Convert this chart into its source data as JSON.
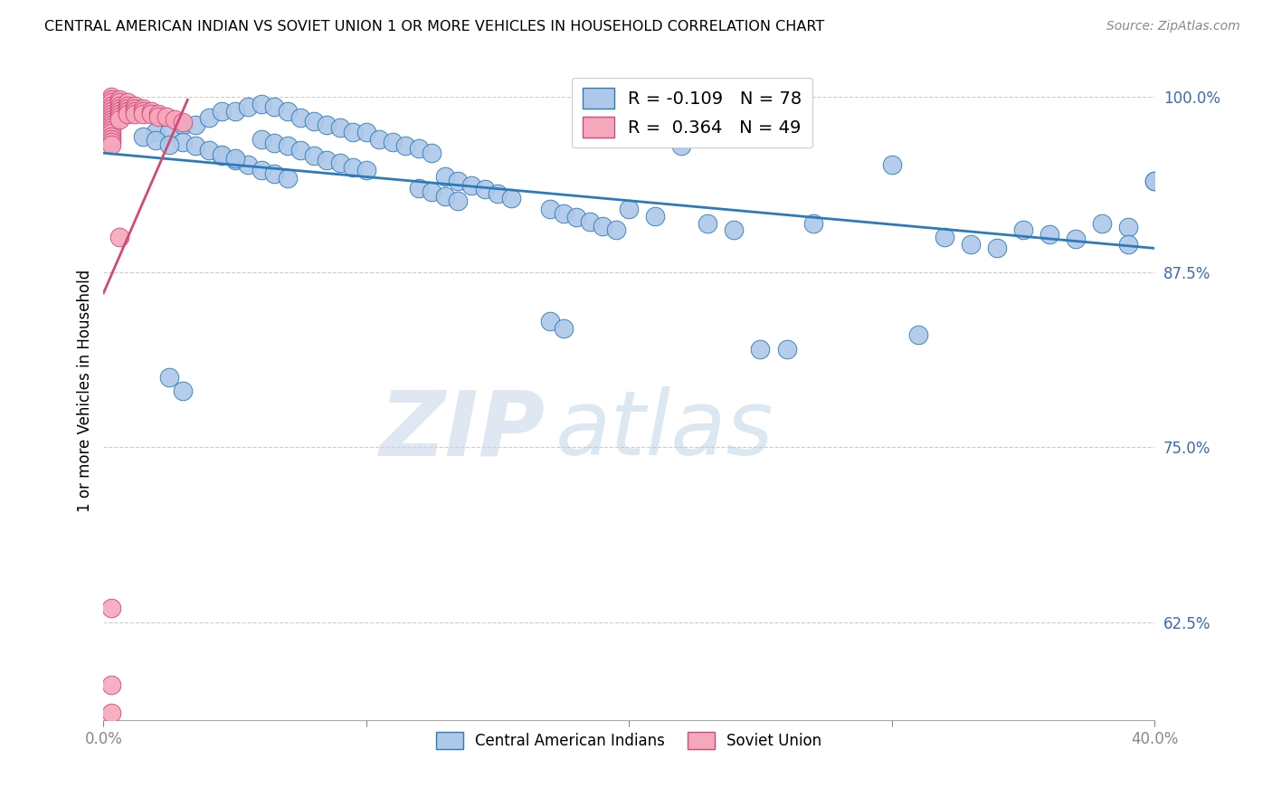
{
  "title": "CENTRAL AMERICAN INDIAN VS SOVIET UNION 1 OR MORE VEHICLES IN HOUSEHOLD CORRELATION CHART",
  "source": "Source: ZipAtlas.com",
  "ylabel": "1 or more Vehicles in Household",
  "ytick_labels": [
    "100.0%",
    "87.5%",
    "75.0%",
    "62.5%"
  ],
  "ytick_values": [
    1.0,
    0.875,
    0.75,
    0.625
  ],
  "xmin": 0.0,
  "xmax": 0.4,
  "ymin": 0.555,
  "ymax": 1.025,
  "legend_R1": "-0.109",
  "legend_N1": "78",
  "legend_R2": "0.364",
  "legend_N2": "49",
  "blue_color": "#adc8e8",
  "pink_color": "#f5a8bc",
  "line_blue_color": "#2b7bba",
  "line_pink_color": "#d44878",
  "watermark_zip": "ZIP",
  "watermark_atlas": "atlas",
  "blue_scatter_x": [
    0.02,
    0.025,
    0.03,
    0.035,
    0.04,
    0.045,
    0.05,
    0.055,
    0.06,
    0.065,
    0.07,
    0.075,
    0.08,
    0.085,
    0.09,
    0.095,
    0.1,
    0.105,
    0.11,
    0.115,
    0.12,
    0.125,
    0.06,
    0.065,
    0.07,
    0.075,
    0.08,
    0.085,
    0.09,
    0.095,
    0.1,
    0.045,
    0.05,
    0.055,
    0.06,
    0.065,
    0.07,
    0.03,
    0.035,
    0.04,
    0.045,
    0.05,
    0.015,
    0.02,
    0.025,
    0.13,
    0.135,
    0.14,
    0.145,
    0.15,
    0.155,
    0.17,
    0.175,
    0.18,
    0.185,
    0.19,
    0.195,
    0.12,
    0.125,
    0.13,
    0.135,
    0.2,
    0.21,
    0.22,
    0.23,
    0.24,
    0.25,
    0.27,
    0.3,
    0.32,
    0.35,
    0.36,
    0.37,
    0.38,
    0.39,
    0.4,
    0.33,
    0.34
  ],
  "blue_scatter_y": [
    0.975,
    0.975,
    0.98,
    0.98,
    0.985,
    0.99,
    0.99,
    0.993,
    0.995,
    0.993,
    0.99,
    0.985,
    0.983,
    0.98,
    0.978,
    0.975,
    0.975,
    0.97,
    0.968,
    0.965,
    0.963,
    0.96,
    0.97,
    0.967,
    0.965,
    0.962,
    0.958,
    0.955,
    0.953,
    0.95,
    0.948,
    0.958,
    0.955,
    0.952,
    0.948,
    0.945,
    0.942,
    0.968,
    0.965,
    0.962,
    0.959,
    0.956,
    0.972,
    0.969,
    0.966,
    0.943,
    0.94,
    0.937,
    0.934,
    0.931,
    0.928,
    0.92,
    0.917,
    0.914,
    0.911,
    0.908,
    0.905,
    0.935,
    0.932,
    0.929,
    0.926,
    0.92,
    0.915,
    0.965,
    0.91,
    0.905,
    0.82,
    0.91,
    0.952,
    0.9,
    0.905,
    0.902,
    0.899,
    0.91,
    0.907,
    0.94,
    0.895,
    0.892
  ],
  "blue_isolated_x": [
    0.025,
    0.03,
    0.17,
    0.175,
    0.26,
    0.31,
    0.39,
    0.4
  ],
  "blue_isolated_y": [
    0.8,
    0.79,
    0.84,
    0.835,
    0.82,
    0.83,
    0.895,
    0.94
  ],
  "pink_scatter_x": [
    0.003,
    0.003,
    0.003,
    0.003,
    0.003,
    0.003,
    0.003,
    0.003,
    0.003,
    0.003,
    0.003,
    0.003,
    0.003,
    0.003,
    0.003,
    0.003,
    0.003,
    0.003,
    0.006,
    0.006,
    0.006,
    0.006,
    0.006,
    0.006,
    0.006,
    0.006,
    0.009,
    0.009,
    0.009,
    0.009,
    0.009,
    0.012,
    0.012,
    0.012,
    0.012,
    0.015,
    0.015,
    0.015,
    0.018,
    0.018,
    0.021,
    0.021,
    0.024,
    0.027,
    0.03,
    0.003,
    0.003,
    0.006,
    0.003
  ],
  "pink_scatter_y": [
    1.0,
    0.998,
    0.996,
    0.994,
    0.992,
    0.99,
    0.988,
    0.986,
    0.984,
    0.982,
    0.98,
    0.978,
    0.976,
    0.974,
    0.972,
    0.97,
    0.968,
    0.966,
    0.998,
    0.996,
    0.994,
    0.992,
    0.99,
    0.988,
    0.986,
    0.984,
    0.996,
    0.994,
    0.992,
    0.99,
    0.988,
    0.994,
    0.992,
    0.99,
    0.988,
    0.992,
    0.99,
    0.988,
    0.99,
    0.988,
    0.988,
    0.986,
    0.986,
    0.984,
    0.982,
    0.635,
    0.58,
    0.9,
    0.56
  ],
  "blue_line_x": [
    0.0,
    0.4
  ],
  "blue_line_y": [
    0.96,
    0.892
  ],
  "pink_line_x": [
    0.0,
    0.032
  ],
  "pink_line_y": [
    0.86,
    0.998
  ],
  "xtick_positions": [
    0.0,
    0.1,
    0.2,
    0.3,
    0.4
  ],
  "xtick_labels": [
    "0.0%",
    "",
    "",
    "",
    "40.0%"
  ]
}
